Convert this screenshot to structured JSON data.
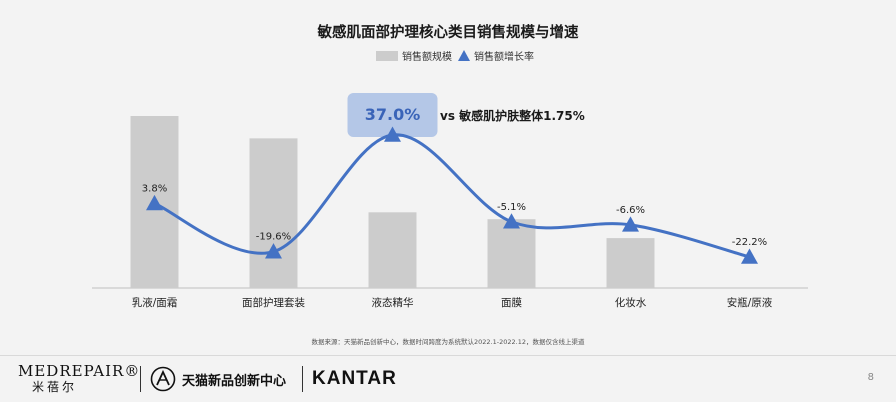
{
  "chart_data": {
    "type": "bar",
    "title": "敏感肌面部护理核心类目销售规模与增速",
    "categories": [
      "乳液/面霜",
      "面部护理套装",
      "液态精华",
      "面膜",
      "化妆水",
      "安瓶/原液"
    ],
    "series": [
      {
        "name": "销售额规模",
        "type": "bar",
        "values": [
          100,
          87,
          44,
          40,
          29,
          0
        ]
      },
      {
        "name": "销售额增长率",
        "type": "line",
        "values": [
          3.8,
          -19.6,
          37.0,
          -5.1,
          -6.6,
          -22.2
        ],
        "labels": [
          "3.8%",
          "-19.6%",
          "37.0%",
          "-5.1%",
          "-6.6%",
          "-22.2%"
        ]
      }
    ],
    "highlight": {
      "label": "37.0%",
      "note": "vs 敏感肌护肤整体1.75%"
    },
    "legend": "top-center",
    "grid": false,
    "colors": {
      "bar": "#cccccc",
      "line": "#4472c4",
      "highlight_box": "#b4c7e7"
    }
  },
  "source_note": "数据来源：天猫新品创新中心，数据时间跨度为系统默认2022.1-2022.12，数据仅含线上渠道",
  "footer": {
    "brand1": "MEDREPAIR®",
    "brand1_cn": "米蓓尔",
    "brand2": "天猫新品创新中心",
    "brand3": "KANTAR",
    "page": "8"
  }
}
